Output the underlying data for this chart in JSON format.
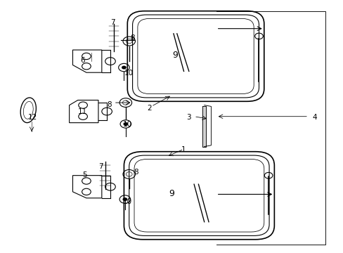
{
  "bg_color": "#ffffff",
  "line_color": "#000000",
  "fig_width": 4.89,
  "fig_height": 3.6,
  "dpi": 100,
  "label_fs": 7.5,
  "label_fs_large": 9.0
}
